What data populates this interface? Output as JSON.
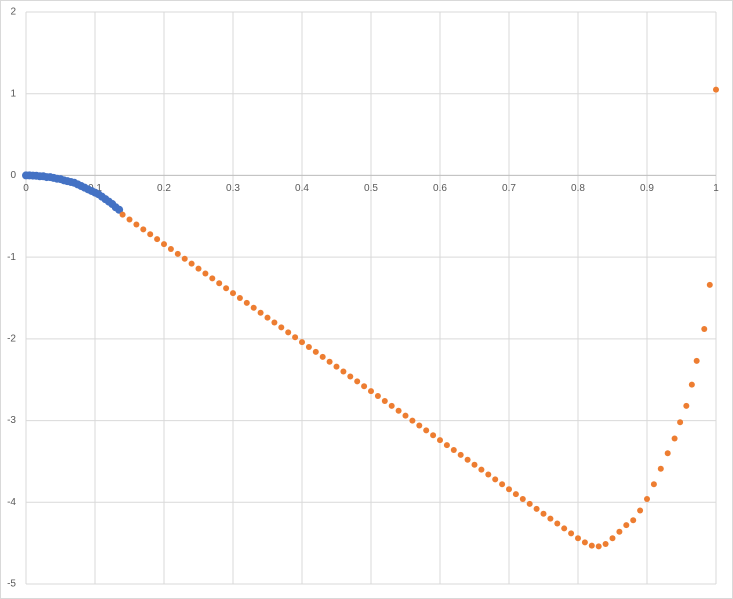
{
  "chart_data": {
    "type": "scatter",
    "xlim": [
      0,
      1
    ],
    "ylim": [
      -5,
      2
    ],
    "xticks": [
      0,
      0.1,
      0.2,
      0.3,
      0.4,
      0.5,
      0.6,
      0.7,
      0.8,
      0.9,
      1
    ],
    "yticks": [
      -5,
      -4,
      -3,
      -2,
      -1,
      0,
      1,
      2
    ],
    "grid": true,
    "series": [
      {
        "color": "#4472c4",
        "marker_radius": 4,
        "x": [
          0,
          0.005,
          0.01,
          0.015,
          0.02,
          0.025,
          0.03,
          0.035,
          0.04,
          0.045,
          0.05,
          0.055,
          0.06,
          0.065,
          0.07,
          0.075,
          0.08,
          0.085,
          0.09,
          0.095,
          0.1,
          0.105,
          0.11,
          0.115,
          0.12,
          0.125,
          0.13,
          0.135
        ],
        "values": [
          0,
          0,
          -0.002,
          -0.004,
          -0.01,
          -0.01,
          -0.02,
          -0.02,
          -0.03,
          -0.04,
          -0.045,
          -0.06,
          -0.07,
          -0.08,
          -0.09,
          -0.11,
          -0.13,
          -0.15,
          -0.17,
          -0.19,
          -0.21,
          -0.23,
          -0.26,
          -0.29,
          -0.32,
          -0.35,
          -0.39,
          -0.42
        ]
      },
      {
        "color": "#ed7d31",
        "marker_radius": 3,
        "x": [
          0.14,
          0.15,
          0.16,
          0.17,
          0.18,
          0.19,
          0.2,
          0.21,
          0.22,
          0.23,
          0.24,
          0.25,
          0.26,
          0.27,
          0.28,
          0.29,
          0.3,
          0.31,
          0.32,
          0.33,
          0.34,
          0.35,
          0.36,
          0.37,
          0.38,
          0.39,
          0.4,
          0.41,
          0.42,
          0.43,
          0.44,
          0.45,
          0.46,
          0.47,
          0.48,
          0.49,
          0.5,
          0.51,
          0.52,
          0.53,
          0.54,
          0.55,
          0.56,
          0.57,
          0.58,
          0.59,
          0.6,
          0.61,
          0.62,
          0.63,
          0.64,
          0.65,
          0.66,
          0.67,
          0.68,
          0.69,
          0.7,
          0.71,
          0.72,
          0.73,
          0.74,
          0.75,
          0.76,
          0.77,
          0.78,
          0.79,
          0.8,
          0.81,
          0.82,
          0.83,
          0.84,
          0.85,
          0.86,
          0.87,
          0.88,
          0.89,
          0.9,
          0.91,
          0.92,
          0.93,
          0.94,
          0.948,
          0.957,
          0.965,
          0.972,
          0.983,
          0.991,
          1
        ],
        "values": [
          -0.48,
          -0.54,
          -0.6,
          -0.66,
          -0.72,
          -0.78,
          -0.84,
          -0.9,
          -0.96,
          -1.02,
          -1.08,
          -1.14,
          -1.2,
          -1.26,
          -1.32,
          -1.38,
          -1.44,
          -1.5,
          -1.56,
          -1.62,
          -1.68,
          -1.74,
          -1.8,
          -1.86,
          -1.92,
          -1.98,
          -2.04,
          -2.1,
          -2.16,
          -2.22,
          -2.28,
          -2.34,
          -2.4,
          -2.46,
          -2.52,
          -2.58,
          -2.64,
          -2.7,
          -2.76,
          -2.82,
          -2.88,
          -2.94,
          -3,
          -3.06,
          -3.12,
          -3.18,
          -3.24,
          -3.3,
          -3.36,
          -3.42,
          -3.48,
          -3.54,
          -3.6,
          -3.66,
          -3.72,
          -3.78,
          -3.84,
          -3.9,
          -3.96,
          -4.02,
          -4.08,
          -4.14,
          -4.2,
          -4.26,
          -4.32,
          -4.38,
          -4.44,
          -4.49,
          -4.53,
          -4.54,
          -4.51,
          -4.44,
          -4.36,
          -4.28,
          -4.22,
          -4.1,
          -3.96,
          -3.78,
          -3.59,
          -3.4,
          -3.22,
          -3.02,
          -2.82,
          -2.56,
          -2.27,
          -1.88,
          -1.34,
          1.05
        ]
      }
    ]
  }
}
